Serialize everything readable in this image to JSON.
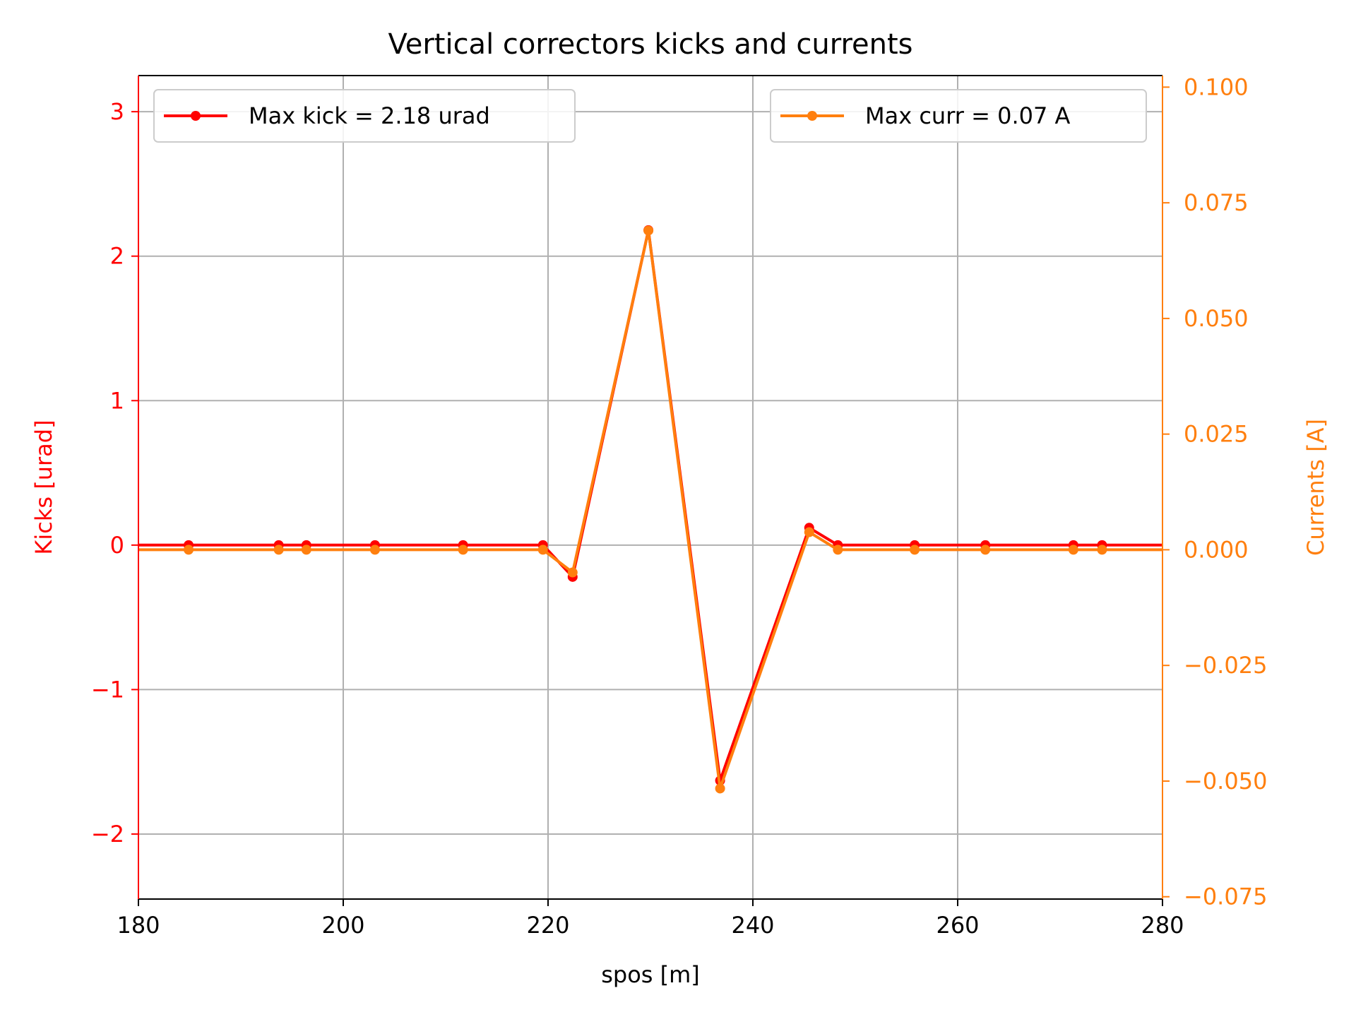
{
  "chart_data": {
    "type": "line",
    "title": "Vertical correctors kicks and currents",
    "xlabel": "spos [m]",
    "ylabel_left": "Kicks [urad]",
    "ylabel_right": "Currents [A]",
    "xlim": [
      180,
      280
    ],
    "ylim_left": [
      -2.45,
      3.25
    ],
    "ylim_right": [
      -0.0755,
      0.1025
    ],
    "x_ticks": [
      180,
      200,
      220,
      240,
      260,
      280
    ],
    "x_tick_labels": [
      "180",
      "200",
      "220",
      "240",
      "260",
      "280"
    ],
    "left_ticks": [
      -2,
      -1,
      0,
      1,
      2,
      3
    ],
    "left_tick_labels": [
      "−2",
      "−1",
      "0",
      "1",
      "2",
      "3"
    ],
    "right_ticks": [
      -0.075,
      -0.05,
      -0.025,
      0.0,
      0.025,
      0.05,
      0.075,
      0.1
    ],
    "right_tick_labels": [
      "−0.075",
      "−0.050",
      "−0.025",
      "0.000",
      "0.025",
      "0.050",
      "0.075",
      "0.100"
    ],
    "grid": true,
    "colors": {
      "kicks": "#ff0000",
      "currents": "#ff7f0e",
      "axes": "#000000",
      "grid": "#b0b0b0"
    },
    "series": [
      {
        "name": "Max kick = 2.18 urad",
        "axis": "left",
        "legend_position": "top-left",
        "x": [
          180.0,
          184.9,
          193.7,
          196.4,
          203.1,
          211.7,
          219.5,
          222.4,
          229.8,
          236.8,
          245.5,
          248.3,
          255.8,
          262.7,
          271.3,
          274.1,
          280.0
        ],
        "y": [
          0.0,
          0.0,
          0.0,
          0.0,
          0.0,
          0.0,
          0.0,
          -0.22,
          2.18,
          -1.63,
          0.12,
          0.0,
          0.0,
          0.0,
          0.0,
          0.0,
          0.0
        ],
        "markers": [
          false,
          true,
          true,
          true,
          true,
          true,
          true,
          true,
          true,
          true,
          true,
          true,
          true,
          true,
          true,
          true,
          false
        ]
      },
      {
        "name": "Max curr = 0.07 A",
        "axis": "right",
        "legend_position": "top-right",
        "x": [
          180.0,
          184.9,
          193.7,
          196.4,
          203.1,
          211.7,
          219.5,
          222.4,
          229.8,
          236.8,
          245.5,
          248.3,
          255.8,
          262.7,
          271.3,
          274.1,
          280.0
        ],
        "y": [
          0.0,
          0.0,
          0.0,
          0.0,
          0.0,
          0.0,
          0.0,
          -0.0049,
          0.069,
          -0.0516,
          0.0038,
          0.0,
          0.0,
          0.0,
          0.0,
          0.0,
          0.0
        ],
        "markers": [
          false,
          true,
          true,
          true,
          true,
          true,
          true,
          true,
          true,
          true,
          true,
          true,
          true,
          true,
          true,
          true,
          false
        ]
      }
    ]
  }
}
